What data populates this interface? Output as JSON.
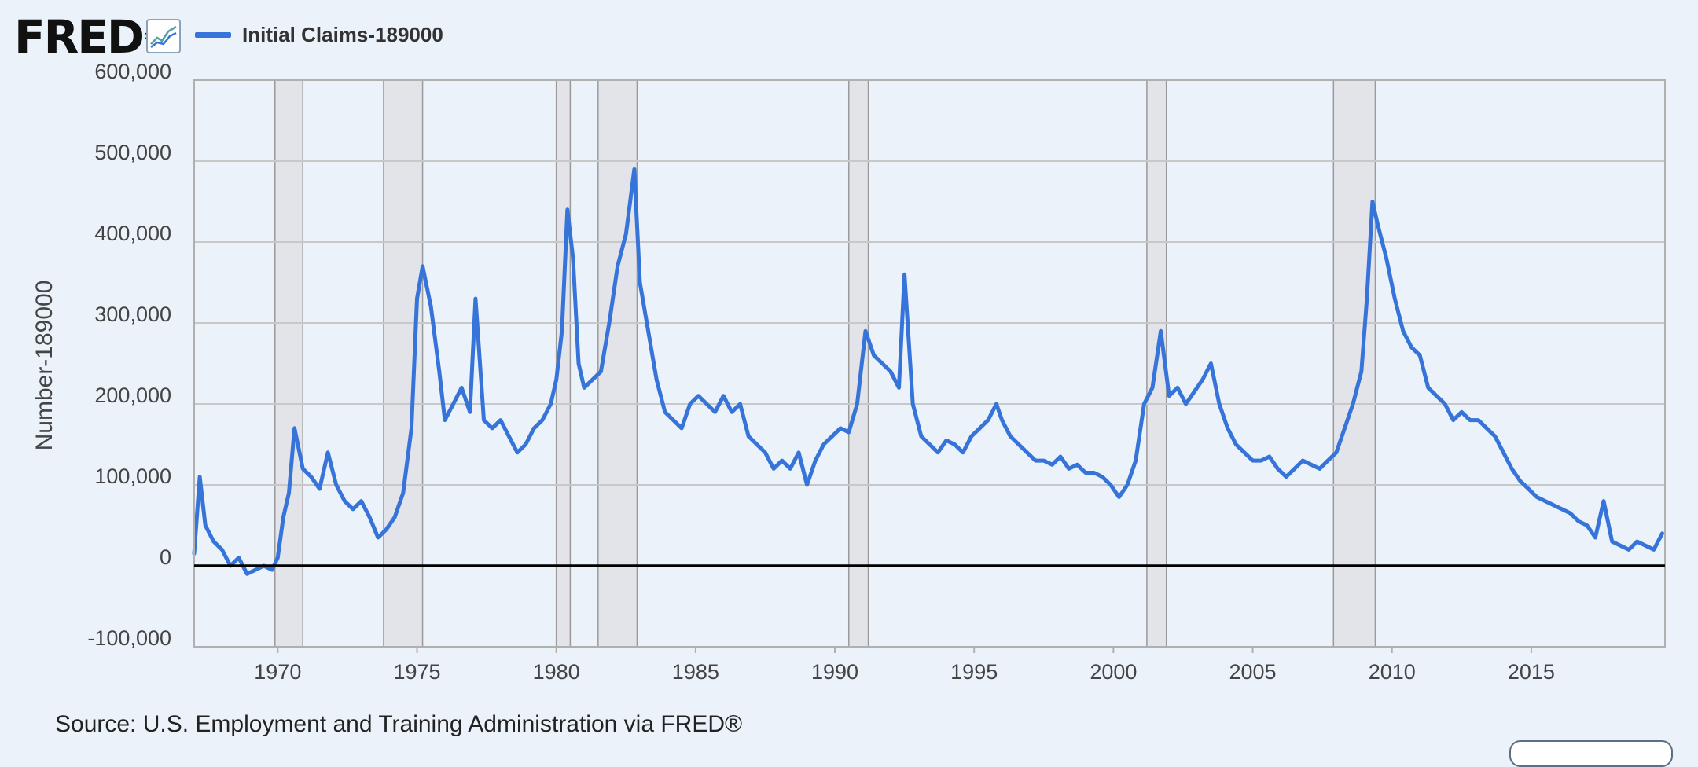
{
  "header": {
    "logo_text": "FRED",
    "logo_mark": "®",
    "graph_icon": "line-graph-icon",
    "legend_label": "Initial Claims-189000"
  },
  "source_text": "Source: U.S. Employment and Training Administration via FRED®",
  "colors": {
    "series": "#3674d9",
    "recession": "#e2e4ea",
    "grid": "#c8c8c8",
    "zero_line": "#000000",
    "background": "#ebf2fa"
  },
  "chart_data": {
    "type": "line",
    "ylabel": "Number-189000",
    "ylim": [
      -100000,
      600000
    ],
    "xlim": [
      1967.0,
      2019.8
    ],
    "y_ticks": [
      600000,
      500000,
      400000,
      300000,
      200000,
      100000,
      0,
      -100000
    ],
    "y_tick_labels": [
      "600,000",
      "500,000",
      "400,000",
      "300,000",
      "200,000",
      "100,000",
      "0",
      "-100,000"
    ],
    "x_ticks": [
      1970,
      1975,
      1980,
      1985,
      1990,
      1995,
      2000,
      2005,
      2010,
      2015
    ],
    "x_tick_labels": [
      "1970",
      "1975",
      "1980",
      "1985",
      "1990",
      "1995",
      "2000",
      "2005",
      "2010",
      "2015"
    ],
    "grid": true,
    "legend_position": "top-left",
    "recessions": [
      [
        1969.9,
        1970.9
      ],
      [
        1973.8,
        1975.2
      ],
      [
        1980.0,
        1980.5
      ],
      [
        1981.5,
        1982.9
      ],
      [
        1990.5,
        1991.2
      ],
      [
        2001.2,
        2001.9
      ],
      [
        2007.9,
        2009.4
      ]
    ],
    "series": [
      {
        "name": "Initial Claims-189000",
        "x": [
          1967.0,
          1967.2,
          1967.4,
          1967.7,
          1968.0,
          1968.3,
          1968.6,
          1968.9,
          1969.2,
          1969.5,
          1969.8,
          1970.0,
          1970.2,
          1970.4,
          1970.6,
          1970.9,
          1971.2,
          1971.5,
          1971.8,
          1972.1,
          1972.4,
          1972.7,
          1973.0,
          1973.3,
          1973.6,
          1973.9,
          1974.2,
          1974.5,
          1974.8,
          1975.0,
          1975.2,
          1975.5,
          1975.8,
          1976.0,
          1976.3,
          1976.6,
          1976.9,
          1977.1,
          1977.4,
          1977.7,
          1978.0,
          1978.3,
          1978.6,
          1978.9,
          1979.2,
          1979.5,
          1979.8,
          1980.0,
          1980.2,
          1980.4,
          1980.6,
          1980.8,
          1981.0,
          1981.3,
          1981.6,
          1981.9,
          1982.2,
          1982.5,
          1982.8,
          1983.0,
          1983.3,
          1983.6,
          1983.9,
          1984.2,
          1984.5,
          1984.8,
          1985.1,
          1985.4,
          1985.7,
          1986.0,
          1986.3,
          1986.6,
          1986.9,
          1987.2,
          1987.5,
          1987.8,
          1988.1,
          1988.4,
          1988.7,
          1989.0,
          1989.3,
          1989.6,
          1989.9,
          1990.2,
          1990.5,
          1990.8,
          1991.1,
          1991.4,
          1991.7,
          1992.0,
          1992.3,
          1992.5,
          1992.8,
          1993.1,
          1993.4,
          1993.7,
          1994.0,
          1994.3,
          1994.6,
          1994.9,
          1995.2,
          1995.5,
          1995.8,
          1996.0,
          1996.3,
          1996.6,
          1996.9,
          1997.2,
          1997.5,
          1997.8,
          1998.1,
          1998.4,
          1998.7,
          1999.0,
          1999.3,
          1999.6,
          1999.9,
          2000.2,
          2000.5,
          2000.8,
          2001.1,
          2001.4,
          2001.7,
          2002.0,
          2002.3,
          2002.6,
          2002.9,
          2003.2,
          2003.5,
          2003.8,
          2004.1,
          2004.4,
          2004.7,
          2005.0,
          2005.3,
          2005.6,
          2005.9,
          2006.2,
          2006.5,
          2006.8,
          2007.1,
          2007.4,
          2007.7,
          2008.0,
          2008.3,
          2008.6,
          2008.9,
          2009.1,
          2009.3,
          2009.5,
          2009.8,
          2010.1,
          2010.4,
          2010.7,
          2011.0,
          2011.3,
          2011.6,
          2011.9,
          2012.2,
          2012.5,
          2012.8,
          2013.1,
          2013.4,
          2013.7,
          2014.0,
          2014.3,
          2014.6,
          2014.9,
          2015.2,
          2015.5,
          2015.8,
          2016.1,
          2016.4,
          2016.7,
          2017.0,
          2017.3,
          2017.6,
          2017.9,
          2018.2,
          2018.5,
          2018.8,
          2019.1,
          2019.4,
          2019.7
        ],
        "values": [
          15000,
          110000,
          50000,
          30000,
          20000,
          0,
          10000,
          -10000,
          -5000,
          0,
          -5000,
          10000,
          60000,
          90000,
          170000,
          120000,
          110000,
          95000,
          140000,
          100000,
          80000,
          70000,
          80000,
          60000,
          35000,
          45000,
          60000,
          90000,
          170000,
          330000,
          370000,
          320000,
          240000,
          180000,
          200000,
          220000,
          190000,
          330000,
          180000,
          170000,
          180000,
          160000,
          140000,
          150000,
          170000,
          180000,
          200000,
          230000,
          290000,
          440000,
          380000,
          250000,
          220000,
          230000,
          240000,
          300000,
          370000,
          410000,
          490000,
          350000,
          290000,
          230000,
          190000,
          180000,
          170000,
          200000,
          210000,
          200000,
          190000,
          210000,
          190000,
          200000,
          160000,
          150000,
          140000,
          120000,
          130000,
          120000,
          140000,
          100000,
          130000,
          150000,
          160000,
          170000,
          165000,
          200000,
          290000,
          260000,
          250000,
          240000,
          220000,
          360000,
          200000,
          160000,
          150000,
          140000,
          155000,
          150000,
          140000,
          160000,
          170000,
          180000,
          200000,
          180000,
          160000,
          150000,
          140000,
          130000,
          130000,
          125000,
          135000,
          120000,
          125000,
          115000,
          115000,
          110000,
          100000,
          85000,
          100000,
          130000,
          200000,
          220000,
          290000,
          210000,
          220000,
          200000,
          215000,
          230000,
          250000,
          200000,
          170000,
          150000,
          140000,
          130000,
          130000,
          135000,
          120000,
          110000,
          120000,
          130000,
          125000,
          120000,
          130000,
          140000,
          170000,
          200000,
          240000,
          330000,
          450000,
          420000,
          380000,
          330000,
          290000,
          270000,
          260000,
          220000,
          210000,
          200000,
          180000,
          190000,
          180000,
          180000,
          170000,
          160000,
          140000,
          120000,
          105000,
          95000,
          85000,
          80000,
          75000,
          70000,
          65000,
          55000,
          50000,
          35000,
          80000,
          30000,
          25000,
          20000,
          30000,
          25000,
          20000,
          40000
        ]
      }
    ]
  }
}
